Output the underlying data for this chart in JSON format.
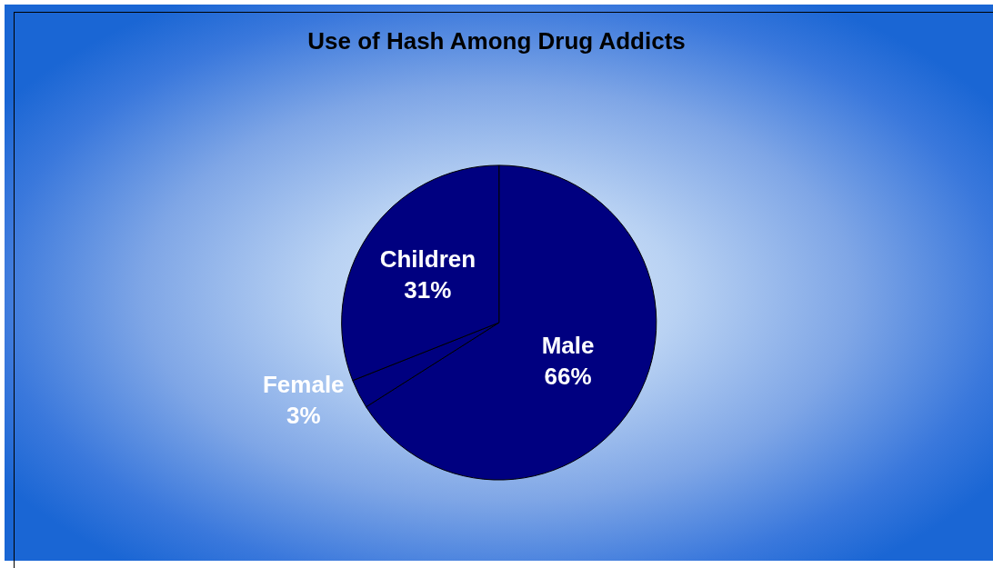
{
  "chart_data": {
    "type": "pie",
    "title": "Use of Hash Among Drug Addicts",
    "categories": [
      "Male",
      "Female",
      "Children"
    ],
    "values": [
      66,
      3,
      31
    ],
    "value_labels": [
      "66%",
      "3%",
      "31%"
    ],
    "colors": [
      "#000080",
      "#000080",
      "#000080"
    ],
    "legend": false
  }
}
